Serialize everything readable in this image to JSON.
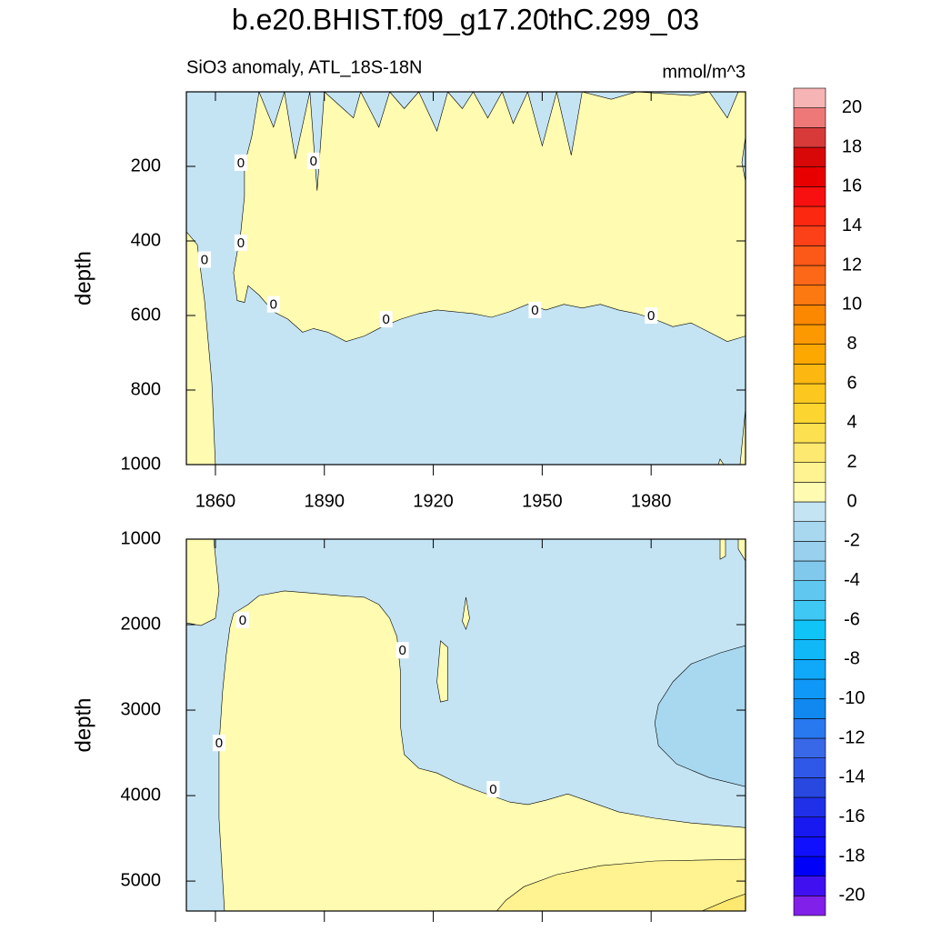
{
  "chart_data": {
    "type": "contour",
    "title": "b.e20.BHIST.f09_g17.20thC.299_03",
    "subtitle": "SiO3 anomaly, ATL_18S-18N",
    "units": "mmol/m^3",
    "xlim": [
      1852,
      2006
    ],
    "xticks": [
      1860,
      1890,
      1920,
      1950,
      1980
    ],
    "y_reversed": true,
    "colorbar": {
      "levels": [
        -20,
        -19,
        -18,
        -17,
        -16,
        -15,
        -14,
        -13,
        -12,
        -11,
        -10,
        -9,
        -8,
        -7,
        -6,
        -5,
        -4,
        -3,
        -2,
        -1,
        0,
        1,
        2,
        3,
        4,
        5,
        6,
        7,
        8,
        9,
        10,
        11,
        12,
        13,
        14,
        15,
        16,
        17,
        18,
        19,
        20
      ],
      "ticks": [
        -20,
        -18,
        -16,
        -14,
        -12,
        -10,
        -8,
        -6,
        -4,
        -2,
        0,
        2,
        4,
        6,
        8,
        10,
        12,
        14,
        16,
        18,
        20
      ],
      "colors": [
        "#8020e8",
        "#4010f0",
        "#0000f8",
        "#1010ff",
        "#1818f0",
        "#2030e8",
        "#2848e0",
        "#3058e8",
        "#3868e8",
        "#2878f0",
        "#1088f0",
        "#1098f8",
        "#10a8f8",
        "#10b8f8",
        "#10c4f8",
        "#40c8f4",
        "#60c8f0",
        "#80c8ec",
        "#98d0ee",
        "#a8d8f0",
        "#c4e4f4",
        "#fffbb0",
        "#fff290",
        "#fde870",
        "#fde050",
        "#fdd530",
        "#fcc820",
        "#fcb810",
        "#fca800",
        "#fc9800",
        "#fc8800",
        "#fc7810",
        "#fc6818",
        "#fc5818",
        "#fc4018",
        "#fc2810",
        "#f81010",
        "#e80000",
        "#d80808",
        "#d83a3a",
        "#ee7878",
        "#f7b4b4"
      ]
    },
    "panels": [
      {
        "ylabel": "depth",
        "ylim": [
          0,
          1000
        ],
        "yticks": [
          200,
          400,
          600,
          800,
          1000
        ],
        "base_color": "#c4e4f4",
        "regions": [
          {
            "color": "#fffbb0",
            "x": [
              1872,
              1876,
              1879,
              1882,
              1886,
              1888,
              1890,
              1898,
              1900,
              1905,
              1908,
              1912,
              1916,
              1921,
              1924,
              1928,
              1931,
              1935,
              1939,
              1942,
              1946,
              1950,
              1954,
              1958,
              1961,
              1969,
              1976,
              1991,
              1996,
              2001,
              2004,
              2006,
              2006,
              2005,
              2006,
              2006,
              2001,
              1996,
              1991,
              1986,
              1981,
              1976,
              1971,
              1966,
              1961,
              1956,
              1951,
              1946,
              1941,
              1936,
              1931,
              1926,
              1921,
              1916,
              1911,
              1906,
              1901,
              1896,
              1891,
              1887,
              1884,
              1880,
              1876,
              1872,
              1869,
              1868,
              1866,
              1865,
              1867,
              1868,
              1868,
              1870
            ],
            "y": [
              0,
              95,
              0,
              180,
              0,
              265,
              0,
              70,
              0,
              95,
              0,
              45,
              0,
              105,
              0,
              45,
              0,
              70,
              0,
              85,
              0,
              145,
              0,
              170,
              0,
              20,
              0,
              10,
              0,
              70,
              0,
              0,
              120,
              190,
              240,
              655,
              670,
              645,
              620,
              630,
              610,
              595,
              585,
              570,
              580,
              570,
              585,
              570,
              590,
              605,
              595,
              590,
              585,
              595,
              610,
              630,
              655,
              670,
              645,
              635,
              645,
              610,
              590,
              545,
              520,
              565,
              560,
              485,
              375,
              280,
              195,
              120
            ]
          },
          {
            "color": "#fffbb0",
            "x": [
              1852,
              1855,
              1857,
              1859,
              1860,
              1852
            ],
            "y": [
              375,
              410,
              560,
              780,
              1000,
              1000
            ]
          },
          {
            "color": "#fffbb0",
            "x": [
              2004.5,
              2006,
              2006
            ],
            "y": [
              1000,
              850,
              1000
            ]
          },
          {
            "color": "#fffbb0",
            "x": [
              1999,
              2000,
              1998.5
            ],
            "y": [
              985,
              1000,
              1000
            ]
          }
        ],
        "contour_labels": [
          {
            "text": "0",
            "x": 1867,
            "y": 190
          },
          {
            "text": "0",
            "x": 1887,
            "y": 185
          },
          {
            "text": "0",
            "x": 1867,
            "y": 405
          },
          {
            "text": "0",
            "x": 1857,
            "y": 450
          },
          {
            "text": "0",
            "x": 1876,
            "y": 570
          },
          {
            "text": "0",
            "x": 1907,
            "y": 610
          },
          {
            "text": "0",
            "x": 1948,
            "y": 585
          },
          {
            "text": "0",
            "x": 1980,
            "y": 600
          }
        ]
      },
      {
        "ylabel": "depth",
        "ylim": [
          1000,
          5350
        ],
        "yticks": [
          1000,
          2000,
          3000,
          4000,
          5000
        ],
        "base_color": "#c4e4f4",
        "regions": [
          {
            "color": "#fffbb0",
            "x": [
              1852,
              1859.5,
              1861,
              1860,
              1856,
              1852
            ],
            "y": [
              1000,
              1000,
              1605,
              1925,
              2010,
              1980
            ]
          },
          {
            "color": "#fffbb0",
            "x": [
              1864,
              1865,
              1869,
              1872,
              1879,
              1886,
              1894,
              1901,
              1905,
              1908,
              1910,
              1911,
              1911,
              1912,
              1916,
              1921,
              1926,
              1931,
              1941,
              1946,
              1951,
              1957,
              1962,
              1971,
              1981,
              1991,
              2006,
              2006,
              1862.5,
              1861,
              1861,
              1862,
              1863
            ],
            "y": [
              2030,
              1870,
              1765,
              1660,
              1605,
              1630,
              1660,
              1680,
              1765,
              1925,
              2140,
              2565,
              3200,
              3520,
              3680,
              3735,
              3840,
              3925,
              4075,
              4105,
              4055,
              3980,
              4055,
              4190,
              4265,
              4320,
              4375,
              5350,
              5350,
              4265,
              3415,
              2775,
              2350
            ]
          },
          {
            "color": "#fff290",
            "x": [
              1937.5,
              1940,
              1945,
              1954,
              1966,
              1981,
              2006,
              2006
            ],
            "y": [
              5350,
              5225,
              5065,
              4925,
              4820,
              4765,
              4745,
              5350
            ]
          },
          {
            "color": "#fde870",
            "x": [
              1994,
              2001,
              2006,
              2006
            ],
            "y": [
              5350,
              5225,
              5150,
              5350
            ]
          },
          {
            "color": "#fffbb0",
            "x": [
              1928,
              1929,
              1930,
              1929
            ],
            "y": [
              1960,
              1680,
              1925,
              2055
            ]
          },
          {
            "color": "#fffbb0",
            "x": [
              1921,
              1922,
              1924,
              1924,
              1922
            ],
            "y": [
              2670,
              2190,
              2265,
              2885,
              2905
            ]
          },
          {
            "color": "#fffbb0",
            "x": [
              1999,
              2000.5,
              2000.5,
              1999
            ],
            "y": [
              1000,
              1000,
              1200,
              1235
            ]
          },
          {
            "color": "#fffbb0",
            "x": [
              2004,
              2006,
              2006,
              2004
            ],
            "y": [
              1000,
              1000,
              1255,
              1115
            ]
          },
          {
            "color": "#a8d8f0",
            "x": [
              2006,
              1999,
              1991,
              1986,
              1982,
              1981,
              1982,
              1987,
              1996,
              2006
            ],
            "y": [
              2245,
              2330,
              2460,
              2670,
              2935,
              3150,
              3415,
              3630,
              3790,
              3895
            ]
          }
        ],
        "contour_labels": [
          {
            "text": "0",
            "x": 1867.5,
            "y": 1945
          },
          {
            "text": "0",
            "x": 1911.5,
            "y": 2300
          },
          {
            "text": "0",
            "x": 1861,
            "y": 3385
          },
          {
            "text": "0",
            "x": 1936.5,
            "y": 3925
          }
        ]
      }
    ]
  }
}
